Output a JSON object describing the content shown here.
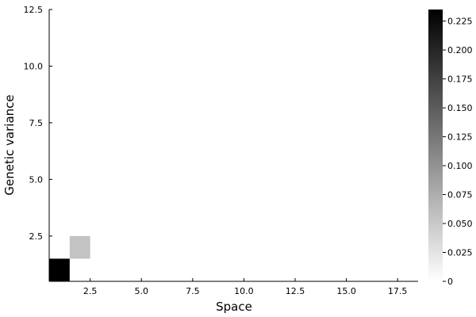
{
  "chart_data": {
    "type": "heatmap",
    "title": "",
    "xlabel": "Space",
    "ylabel": "Genetic variance",
    "xlim": [
      0.5,
      18.5
    ],
    "ylim": [
      0.5,
      12.5
    ],
    "x_ticks": [
      "2.5",
      "5.0",
      "7.5",
      "10.0",
      "12.5",
      "15.0",
      "17.5"
    ],
    "x_tick_values": [
      2.5,
      5.0,
      7.5,
      10.0,
      12.5,
      15.0,
      17.5
    ],
    "y_ticks": [
      "2.5",
      "5.0",
      "7.5",
      "10.0",
      "12.5"
    ],
    "y_tick_values": [
      2.5,
      5.0,
      7.5,
      10.0,
      12.5
    ],
    "colormap": [
      "#ffffff",
      "#000000"
    ],
    "colorbar_range": [
      0,
      0.235
    ],
    "colorbar_ticks": [
      "0",
      "0.025",
      "0.050",
      "0.075",
      "0.100",
      "0.125",
      "0.150",
      "0.175",
      "0.200",
      "0.225"
    ],
    "colorbar_tick_values": [
      0,
      0.025,
      0.05,
      0.075,
      0.1,
      0.125,
      0.15,
      0.175,
      0.2,
      0.225
    ],
    "cells": [
      {
        "x": 1,
        "y": 1,
        "value": 0.235
      },
      {
        "x": 2,
        "y": 2,
        "value": 0.055
      },
      {
        "x": 2,
        "y": 1,
        "value": 0.0
      },
      {
        "x": 3,
        "y": 1,
        "value": 0.0
      },
      {
        "x": 4,
        "y": 1,
        "value": 0.0
      },
      {
        "x": 5,
        "y": 1,
        "value": 0.0
      },
      {
        "x": 6,
        "y": 1,
        "value": 0.0
      },
      {
        "x": 7,
        "y": 1,
        "value": 0.0
      },
      {
        "x": 8,
        "y": 1,
        "value": 0.0
      },
      {
        "x": 9,
        "y": 1,
        "value": 0.0
      },
      {
        "x": 10,
        "y": 1,
        "value": 0.0
      },
      {
        "x": 11,
        "y": 1,
        "value": 0.0
      },
      {
        "x": 12,
        "y": 1,
        "value": 0.0
      },
      {
        "x": 13,
        "y": 1,
        "value": 0.0
      },
      {
        "x": 14,
        "y": 1,
        "value": 0.0
      },
      {
        "x": 15,
        "y": 1,
        "value": 0.0
      },
      {
        "x": 16,
        "y": 1,
        "value": 0.0
      },
      {
        "x": 17,
        "y": 1,
        "value": 0.0
      },
      {
        "x": 18,
        "y": 1,
        "value": 0.0
      }
    ]
  }
}
